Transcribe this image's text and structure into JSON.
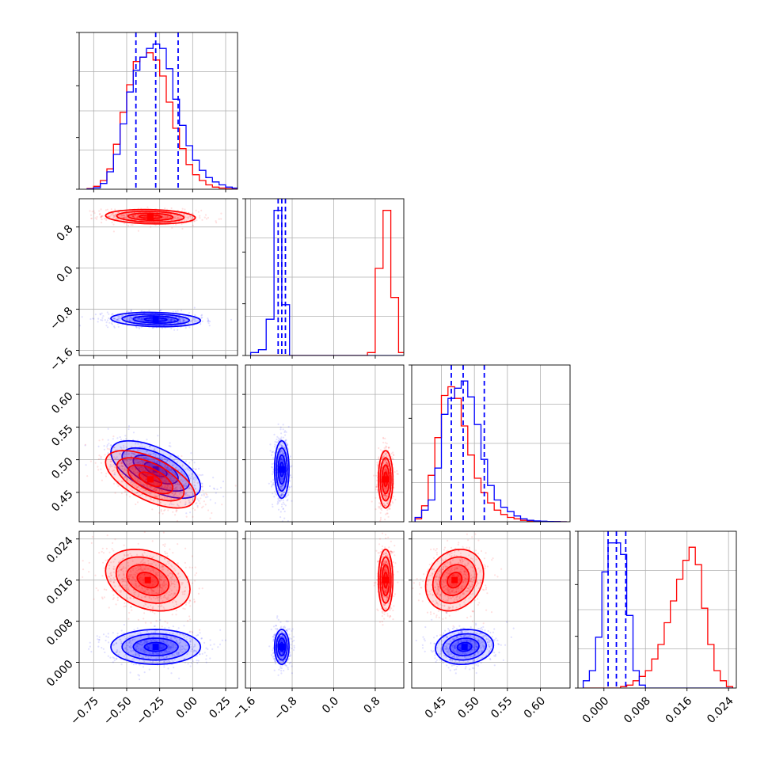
{
  "figure": {
    "type": "corner_plot",
    "colors": {
      "red": "#ff0000",
      "blue": "#0000ff",
      "grid": "#b0b0b0",
      "frame": "#000000"
    }
  },
  "chart_data": {
    "type": "corner",
    "series": [
      {
        "color": "#ff0000"
      },
      {
        "color": "#0000ff"
      }
    ],
    "parameters": [
      {
        "index": 0,
        "range": [
          -0.86,
          0.34
        ],
        "ticks": [
          -0.75,
          -0.5,
          -0.25,
          0.0,
          0.25
        ],
        "tick_labels": [
          "−0.75",
          "−0.50",
          "−0.25",
          "0.00",
          "0.25"
        ]
      },
      {
        "index": 1,
        "range": [
          -1.7,
          1.35
        ],
        "ticks": [
          -1.6,
          -0.8,
          0.0,
          0.8
        ],
        "tick_labels": [
          "−1.6",
          "−0.8",
          "0.0",
          "0.8"
        ]
      },
      {
        "index": 2,
        "range": [
          0.405,
          0.645
        ],
        "ticks": [
          0.45,
          0.5,
          0.55,
          0.6
        ],
        "tick_labels": [
          "0.45",
          "0.50",
          "0.55",
          "0.60"
        ]
      },
      {
        "index": 3,
        "range": [
          -0.005,
          0.0255
        ],
        "ticks": [
          0.0,
          0.008,
          0.016,
          0.024
        ],
        "tick_labels": [
          "0.000",
          "0.008",
          "0.016",
          "0.024"
        ]
      }
    ],
    "histograms": [
      {
        "param": 0,
        "bin_edges": [
          -0.8,
          -0.75,
          -0.7,
          -0.65,
          -0.6,
          -0.55,
          -0.5,
          -0.45,
          -0.4,
          -0.35,
          -0.3,
          -0.25,
          -0.2,
          -0.15,
          -0.1,
          -0.05,
          0.0,
          0.05,
          0.1,
          0.15,
          0.2,
          0.25,
          0.3,
          0.35
        ],
        "red": [
          0.005,
          0.02,
          0.06,
          0.14,
          0.31,
          0.53,
          0.72,
          0.88,
          0.91,
          0.94,
          0.89,
          0.78,
          0.6,
          0.42,
          0.28,
          0.17,
          0.1,
          0.06,
          0.03,
          0.015,
          0.008,
          0.003,
          0.001
        ],
        "blue": [
          0.002,
          0.01,
          0.04,
          0.12,
          0.24,
          0.45,
          0.67,
          0.82,
          0.91,
          0.97,
          1.0,
          0.97,
          0.83,
          0.62,
          0.44,
          0.3,
          0.2,
          0.13,
          0.08,
          0.05,
          0.03,
          0.015,
          0.008
        ],
        "quantiles": [
          -0.43,
          -0.28,
          -0.11
        ]
      },
      {
        "param": 1,
        "bin_edges": [
          -1.6,
          -1.45,
          -1.3,
          -1.15,
          -1.0,
          -0.85,
          -0.7,
          -0.55,
          -0.4,
          -0.25,
          -0.1,
          0.05,
          0.2,
          0.35,
          0.5,
          0.65,
          0.8,
          0.95,
          1.1,
          1.25,
          1.4
        ],
        "red": [
          0,
          0,
          0,
          0,
          0,
          0,
          0,
          0,
          0,
          0,
          0,
          0,
          0,
          0,
          0,
          0.02,
          0.6,
          1.0,
          0.4,
          0.02
        ],
        "blue": [
          0.02,
          0.04,
          0.25,
          1.0,
          0.35,
          0,
          0,
          0,
          0,
          0,
          0,
          0,
          0,
          0,
          0,
          0,
          0,
          0,
          0,
          0
        ],
        "quantiles": [
          -1.07,
          -1.0,
          -0.93
        ]
      },
      {
        "param": 2,
        "bin_edges": [
          0.41,
          0.42,
          0.43,
          0.44,
          0.45,
          0.46,
          0.47,
          0.48,
          0.49,
          0.5,
          0.51,
          0.52,
          0.53,
          0.54,
          0.55,
          0.56,
          0.57,
          0.58,
          0.59,
          0.6,
          0.61,
          0.62,
          0.63,
          0.64
        ],
        "red": [
          0.02,
          0.11,
          0.32,
          0.58,
          0.87,
          0.93,
          0.85,
          0.66,
          0.46,
          0.3,
          0.2,
          0.13,
          0.08,
          0.05,
          0.03,
          0.02,
          0.01,
          0.005,
          0.003,
          0.002,
          0.001,
          0.001,
          0
        ],
        "blue": [
          0.03,
          0.08,
          0.15,
          0.37,
          0.74,
          0.85,
          0.92,
          0.97,
          0.86,
          0.67,
          0.43,
          0.25,
          0.15,
          0.1,
          0.07,
          0.04,
          0.02,
          0.01,
          0.006,
          0.004,
          0.002,
          0.001,
          0
        ],
        "quantiles": [
          0.465,
          0.483,
          0.515
        ]
      },
      {
        "param": 3,
        "bin_edges": [
          -0.004,
          -0.0028,
          -0.0016,
          -0.0004,
          0.0008,
          0.002,
          0.0032,
          0.0044,
          0.0056,
          0.0068,
          0.008,
          0.0092,
          0.0104,
          0.0116,
          0.0128,
          0.014,
          0.0152,
          0.0164,
          0.0176,
          0.0188,
          0.02,
          0.0212,
          0.0224,
          0.0236,
          0.0248
        ],
        "red": [
          0,
          0,
          0,
          0,
          0,
          0,
          0.01,
          0.02,
          0.05,
          0.08,
          0.12,
          0.2,
          0.3,
          0.45,
          0.6,
          0.75,
          0.88,
          0.97,
          0.85,
          0.55,
          0.3,
          0.12,
          0.05,
          0.01
        ],
        "blue": [
          0.05,
          0.12,
          0.35,
          0.8,
          1.0,
          1.0,
          0.92,
          0.5,
          0.12,
          0.02,
          0,
          0,
          0,
          0,
          0,
          0,
          0,
          0,
          0,
          0,
          0,
          0,
          0,
          0
        ],
        "quantiles": [
          0.0008,
          0.0024,
          0.0042
        ]
      }
    ],
    "blobs": [
      {
        "row": 1,
        "col": 0,
        "series": "red",
        "cx": -0.32,
        "cy": 1.0,
        "sx": 0.17,
        "sy": 0.07,
        "rho": -0.15
      },
      {
        "row": 1,
        "col": 0,
        "series": "blue",
        "cx": -0.28,
        "cy": -1.0,
        "sx": 0.17,
        "sy": 0.07,
        "rho": -0.15
      },
      {
        "row": 2,
        "col": 0,
        "series": "blue",
        "cx": -0.28,
        "cy": 0.485,
        "sx": 0.17,
        "sy": 0.022,
        "rho": -0.6
      },
      {
        "row": 2,
        "col": 0,
        "series": "red",
        "cx": -0.32,
        "cy": 0.47,
        "sx": 0.17,
        "sy": 0.022,
        "rho": -0.6
      },
      {
        "row": 2,
        "col": 1,
        "series": "blue",
        "cx": -1.0,
        "cy": 0.485,
        "sx": 0.07,
        "sy": 0.022,
        "rho": 0.0
      },
      {
        "row": 2,
        "col": 1,
        "series": "red",
        "cx": 1.0,
        "cy": 0.47,
        "sx": 0.07,
        "sy": 0.022,
        "rho": 0.0
      },
      {
        "row": 3,
        "col": 0,
        "series": "red",
        "cx": -0.34,
        "cy": 0.016,
        "sx": 0.16,
        "sy": 0.003,
        "rho": -0.3
      },
      {
        "row": 3,
        "col": 0,
        "series": "blue",
        "cx": -0.28,
        "cy": 0.003,
        "sx": 0.17,
        "sy": 0.0017,
        "rho": 0.0
      },
      {
        "row": 3,
        "col": 1,
        "series": "red",
        "cx": 1.0,
        "cy": 0.016,
        "sx": 0.07,
        "sy": 0.003,
        "rho": 0.0
      },
      {
        "row": 3,
        "col": 1,
        "series": "blue",
        "cx": -1.0,
        "cy": 0.003,
        "sx": 0.07,
        "sy": 0.0017,
        "rho": 0.0
      },
      {
        "row": 3,
        "col": 2,
        "series": "red",
        "cx": 0.47,
        "cy": 0.016,
        "sx": 0.022,
        "sy": 0.003,
        "rho": 0.2
      },
      {
        "row": 3,
        "col": 2,
        "series": "blue",
        "cx": 0.485,
        "cy": 0.003,
        "sx": 0.022,
        "sy": 0.0017,
        "rho": 0.1
      }
    ],
    "contour_levels_sigma": [
      0.5,
      1.0,
      1.5,
      2.0
    ],
    "grid": true
  }
}
